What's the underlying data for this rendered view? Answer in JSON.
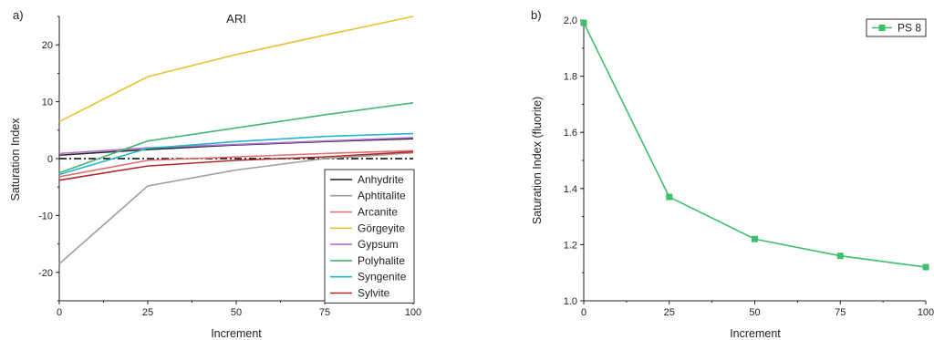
{
  "chart_data": [
    {
      "type": "line",
      "panel_label": "a)",
      "title": "ARI",
      "xlabel": "Increment",
      "ylabel": "Saturation Index",
      "xlim": [
        0,
        100
      ],
      "ylim": [
        -25,
        25
      ],
      "xticks": [
        0,
        25,
        50,
        75,
        100
      ],
      "yticks": [
        -20,
        -10,
        0,
        10,
        20
      ],
      "x": [
        0,
        25,
        50,
        75,
        100
      ],
      "grid": false,
      "legend_position": "bottom-right",
      "reference_line": {
        "y": 0,
        "style": "dash-dot",
        "color": "#000000"
      },
      "series": [
        {
          "name": "Anhydrite",
          "color": "#2b2b2b",
          "values": [
            0.6,
            1.6,
            2.4,
            3.0,
            3.5
          ]
        },
        {
          "name": "Aphtitalite",
          "color": "#9e9e9e",
          "values": [
            -18.5,
            -4.8,
            -2.0,
            0.0,
            1.0
          ]
        },
        {
          "name": "Arcanite",
          "color": "#e07070",
          "values": [
            -3.2,
            -0.3,
            0.3,
            0.9,
            1.4
          ]
        },
        {
          "name": "Görgeyite",
          "color": "#e8c237",
          "values": [
            6.5,
            14.4,
            18.3,
            21.7,
            25.0
          ]
        },
        {
          "name": "Gypsum",
          "color": "#b56ed3",
          "values": [
            0.9,
            1.9,
            2.5,
            3.1,
            3.7
          ]
        },
        {
          "name": "Polyhalite",
          "color": "#43b670",
          "values": [
            -2.5,
            3.1,
            5.4,
            7.7,
            9.8
          ]
        },
        {
          "name": "Syngenite",
          "color": "#22b8c9",
          "values": [
            -2.8,
            1.8,
            3.0,
            3.9,
            4.4
          ]
        },
        {
          "name": "Sylvite",
          "color": "#b02a2a",
          "values": [
            -3.8,
            -1.3,
            -0.3,
            0.3,
            1.2
          ]
        }
      ]
    },
    {
      "type": "line",
      "panel_label": "b)",
      "title": "",
      "xlabel": "Increment",
      "ylabel": "Saturation Index (fluorite)",
      "xlim": [
        0,
        100
      ],
      "ylim": [
        1.0,
        2.0
      ],
      "xticks": [
        0,
        25,
        50,
        75,
        100
      ],
      "yticks": [
        1.0,
        1.2,
        1.4,
        1.6,
        1.8,
        2.0
      ],
      "x": [
        0,
        25,
        50,
        75,
        100
      ],
      "grid": false,
      "legend_position": "top-right",
      "series": [
        {
          "name": "PS 8",
          "color": "#3fbf6b",
          "marker": "square",
          "values": [
            1.99,
            1.37,
            1.22,
            1.16,
            1.12
          ]
        }
      ]
    }
  ]
}
